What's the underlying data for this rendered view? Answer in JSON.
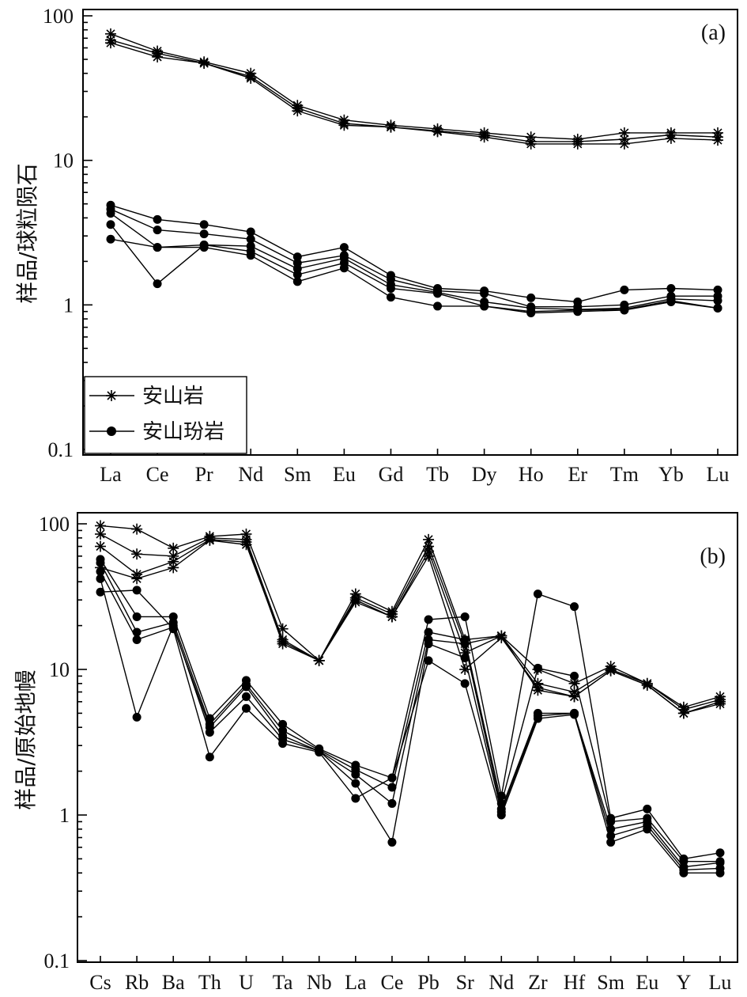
{
  "chart_data": [
    {
      "type": "line",
      "panel_label": "(a)",
      "ylabel": "样品/球粒陨石",
      "yscale": "log",
      "ylim": [
        0.1,
        100
      ],
      "ytick_labels": [
        "100",
        "10",
        "1",
        "0.1"
      ],
      "categories": [
        "La",
        "Ce",
        "Pr",
        "Nd",
        "Sm",
        "Eu",
        "Gd",
        "Tb",
        "Dy",
        "Ho",
        "Er",
        "Tm",
        "Yb",
        "Lu"
      ],
      "legend": {
        "placement": "bottom-left",
        "entries": [
          "安山岩",
          "安山玢岩"
        ]
      },
      "series": [
        {
          "name": "安山岩",
          "marker": "star",
          "values": [
            75,
            57,
            48,
            40,
            24,
            19,
            17.5,
            16.5,
            15.5,
            14.5,
            14,
            15.5,
            15.5,
            15.5
          ]
        },
        {
          "name": "安山岩",
          "marker": "star",
          "values": [
            68,
            55,
            47,
            38,
            23,
            18,
            17,
            16,
            15,
            13.5,
            13.5,
            14,
            15,
            14.5
          ]
        },
        {
          "name": "安山岩",
          "marker": "star",
          "values": [
            65,
            52,
            47,
            37,
            22,
            17.5,
            17,
            15.8,
            14.5,
            13,
            13,
            13,
            14.2,
            13.8
          ]
        },
        {
          "name": "安山玢岩",
          "marker": "dot",
          "values": [
            4.9,
            3.9,
            3.6,
            3.2,
            2.15,
            2.5,
            1.6,
            1.3,
            1.25,
            1.12,
            1.05,
            1.27,
            1.3,
            1.27
          ]
        },
        {
          "name": "安山玢岩",
          "marker": "dot",
          "values": [
            4.6,
            3.3,
            3.1,
            2.85,
            1.95,
            2.2,
            1.5,
            1.25,
            1.2,
            0.97,
            0.97,
            1.0,
            1.15,
            1.15
          ]
        },
        {
          "name": "安山玢岩",
          "marker": "dot",
          "values": [
            4.3,
            2.5,
            2.6,
            2.55,
            1.78,
            2.1,
            1.38,
            1.22,
            1.05,
            0.95,
            0.93,
            0.95,
            1.1,
            1.07
          ]
        },
        {
          "name": "安山玢岩",
          "marker": "dot",
          "values": [
            3.6,
            1.4,
            2.6,
            2.35,
            1.62,
            1.95,
            1.3,
            1.2,
            0.98,
            0.9,
            0.92,
            0.93,
            1.07,
            0.95
          ]
        },
        {
          "name": "安山玢岩",
          "marker": "dot",
          "values": [
            2.85,
            2.5,
            2.5,
            2.2,
            1.45,
            1.8,
            1.13,
            0.98,
            0.98,
            0.88,
            0.9,
            0.92,
            1.05,
            0.95
          ]
        }
      ]
    },
    {
      "type": "line",
      "panel_label": "(b)",
      "ylabel": "样品/原始地幔",
      "yscale": "log",
      "ylim": [
        0.1,
        120
      ],
      "ytick_labels": [
        "100",
        "10",
        "1",
        "0.1"
      ],
      "categories": [
        "Cs",
        "Rb",
        "Ba",
        "Th",
        "U",
        "Ta",
        "Nb",
        "La",
        "Ce",
        "Pb",
        "Sr",
        "Nd",
        "Zr",
        "Hf",
        "Sm",
        "Eu",
        "Y",
        "Lu"
      ],
      "series": [
        {
          "name": "安山岩",
          "marker": "star",
          "values": [
            97,
            92,
            68,
            82,
            85,
            19,
            11.5,
            33,
            25,
            78,
            16,
            17,
            10,
            8,
            10.5,
            8,
            5.5,
            6.5
          ]
        },
        {
          "name": "安山岩",
          "marker": "star",
          "values": [
            85,
            62,
            60,
            80,
            78,
            16,
            11.5,
            31,
            24,
            70,
            15,
            17,
            8,
            7,
            10,
            8,
            5.3,
            6.2
          ]
        },
        {
          "name": "安山岩",
          "marker": "star",
          "values": [
            70,
            45,
            55,
            78,
            75,
            15,
            11.5,
            30,
            23,
            65,
            13,
            17,
            7.2,
            6.5,
            9.8,
            7.8,
            5.0,
            6.0
          ]
        },
        {
          "name": "安山岩",
          "marker": "star",
          "values": [
            50,
            42,
            50,
            77,
            72,
            15.5,
            11.5,
            29,
            23,
            60,
            10,
            16.5,
            7.5,
            6.5,
            9.8,
            7.8,
            5.0,
            5.8
          ]
        },
        {
          "name": "安山玢岩",
          "marker": "dot",
          "values": [
            57,
            23,
            23,
            4.6,
            8.4,
            4.2,
            2.85,
            2.2,
            1.8,
            22,
            23,
            1.35,
            33,
            27,
            0.95,
            1.1,
            0.5,
            0.55
          ]
        },
        {
          "name": "安山玢岩",
          "marker": "dot",
          "values": [
            54,
            18,
            21,
            4.2,
            7.9,
            3.8,
            2.8,
            2.05,
            1.55,
            18,
            16,
            1.2,
            10.2,
            9,
            0.9,
            0.95,
            0.48,
            0.48
          ]
        },
        {
          "name": "安山玢岩",
          "marker": "dot",
          "values": [
            47,
            16,
            19.5,
            4.0,
            7.6,
            3.5,
            2.75,
            1.9,
            1.2,
            16,
            15,
            1.1,
            5,
            5,
            0.8,
            0.9,
            0.44,
            0.47
          ]
        },
        {
          "name": "安山玢岩",
          "marker": "dot",
          "values": [
            42,
            4.7,
            20,
            3.7,
            6.5,
            3.3,
            2.75,
            1.65,
            0.65,
            15,
            12,
            1.05,
            4.8,
            5,
            0.72,
            0.85,
            0.42,
            0.43
          ]
        },
        {
          "name": "安山玢岩",
          "marker": "dot",
          "values": [
            34,
            35,
            19,
            2.5,
            5.4,
            3.1,
            2.7,
            1.3,
            1.8,
            11.5,
            8,
            1.0,
            4.6,
            4.9,
            0.65,
            0.8,
            0.4,
            0.4
          ]
        }
      ]
    }
  ]
}
